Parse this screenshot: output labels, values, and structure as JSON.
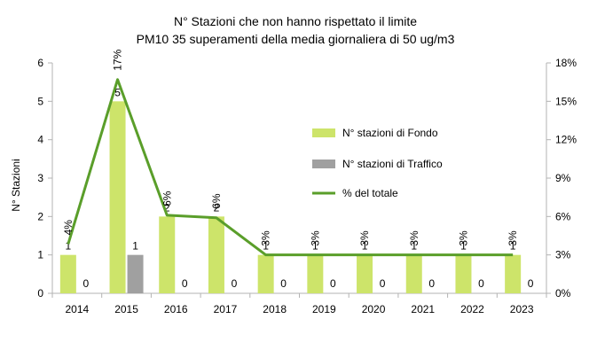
{
  "chart_data": {
    "type": "bar",
    "title": "N° Stazioni che non hanno rispettato il limite",
    "subtitle": "PM10   35 superamenti della media giornaliera di 50 ug/m3",
    "ylabel": "N° Stazioni",
    "y2label": "",
    "ylim": [
      0,
      6
    ],
    "y2lim": [
      0,
      18
    ],
    "y_ticks": [
      "0",
      "1",
      "2",
      "3",
      "4",
      "5",
      "6"
    ],
    "y2_ticks": [
      "0%",
      "3%",
      "6%",
      "9%",
      "12%",
      "15%",
      "18%"
    ],
    "categories": [
      "2014",
      "2015",
      "2016",
      "2017",
      "2018",
      "2019",
      "2020",
      "2021",
      "2022",
      "2023"
    ],
    "series": [
      {
        "name": "N° stazioni di Fondo",
        "kind": "bar",
        "color": "#cde46a",
        "values": [
          1,
          5,
          2,
          2,
          1,
          1,
          1,
          1,
          1,
          1
        ],
        "labels": [
          "1",
          "5",
          "2",
          "2",
          "1",
          "1",
          "1",
          "1",
          "1",
          "1"
        ]
      },
      {
        "name": "N° stazioni di Traffico",
        "kind": "bar",
        "color": "#a0a0a0",
        "values": [
          0,
          1,
          0,
          0,
          0,
          0,
          0,
          0,
          0,
          0
        ],
        "labels": [
          "0",
          "1",
          "0",
          "0",
          "0",
          "0",
          "0",
          "0",
          "0",
          "0"
        ]
      },
      {
        "name": "% del totale",
        "kind": "line",
        "axis": "right",
        "color": "#5a9e2a",
        "values": [
          3.85,
          16.7,
          6.1,
          5.9,
          3,
          3,
          3,
          3,
          3,
          3
        ],
        "labels": [
          "4%",
          "17%",
          "6%",
          "6%",
          "3%",
          "3%",
          "3%",
          "3%",
          "3%",
          "3%"
        ]
      }
    ],
    "legend_position": "right-middle",
    "grid": false
  }
}
